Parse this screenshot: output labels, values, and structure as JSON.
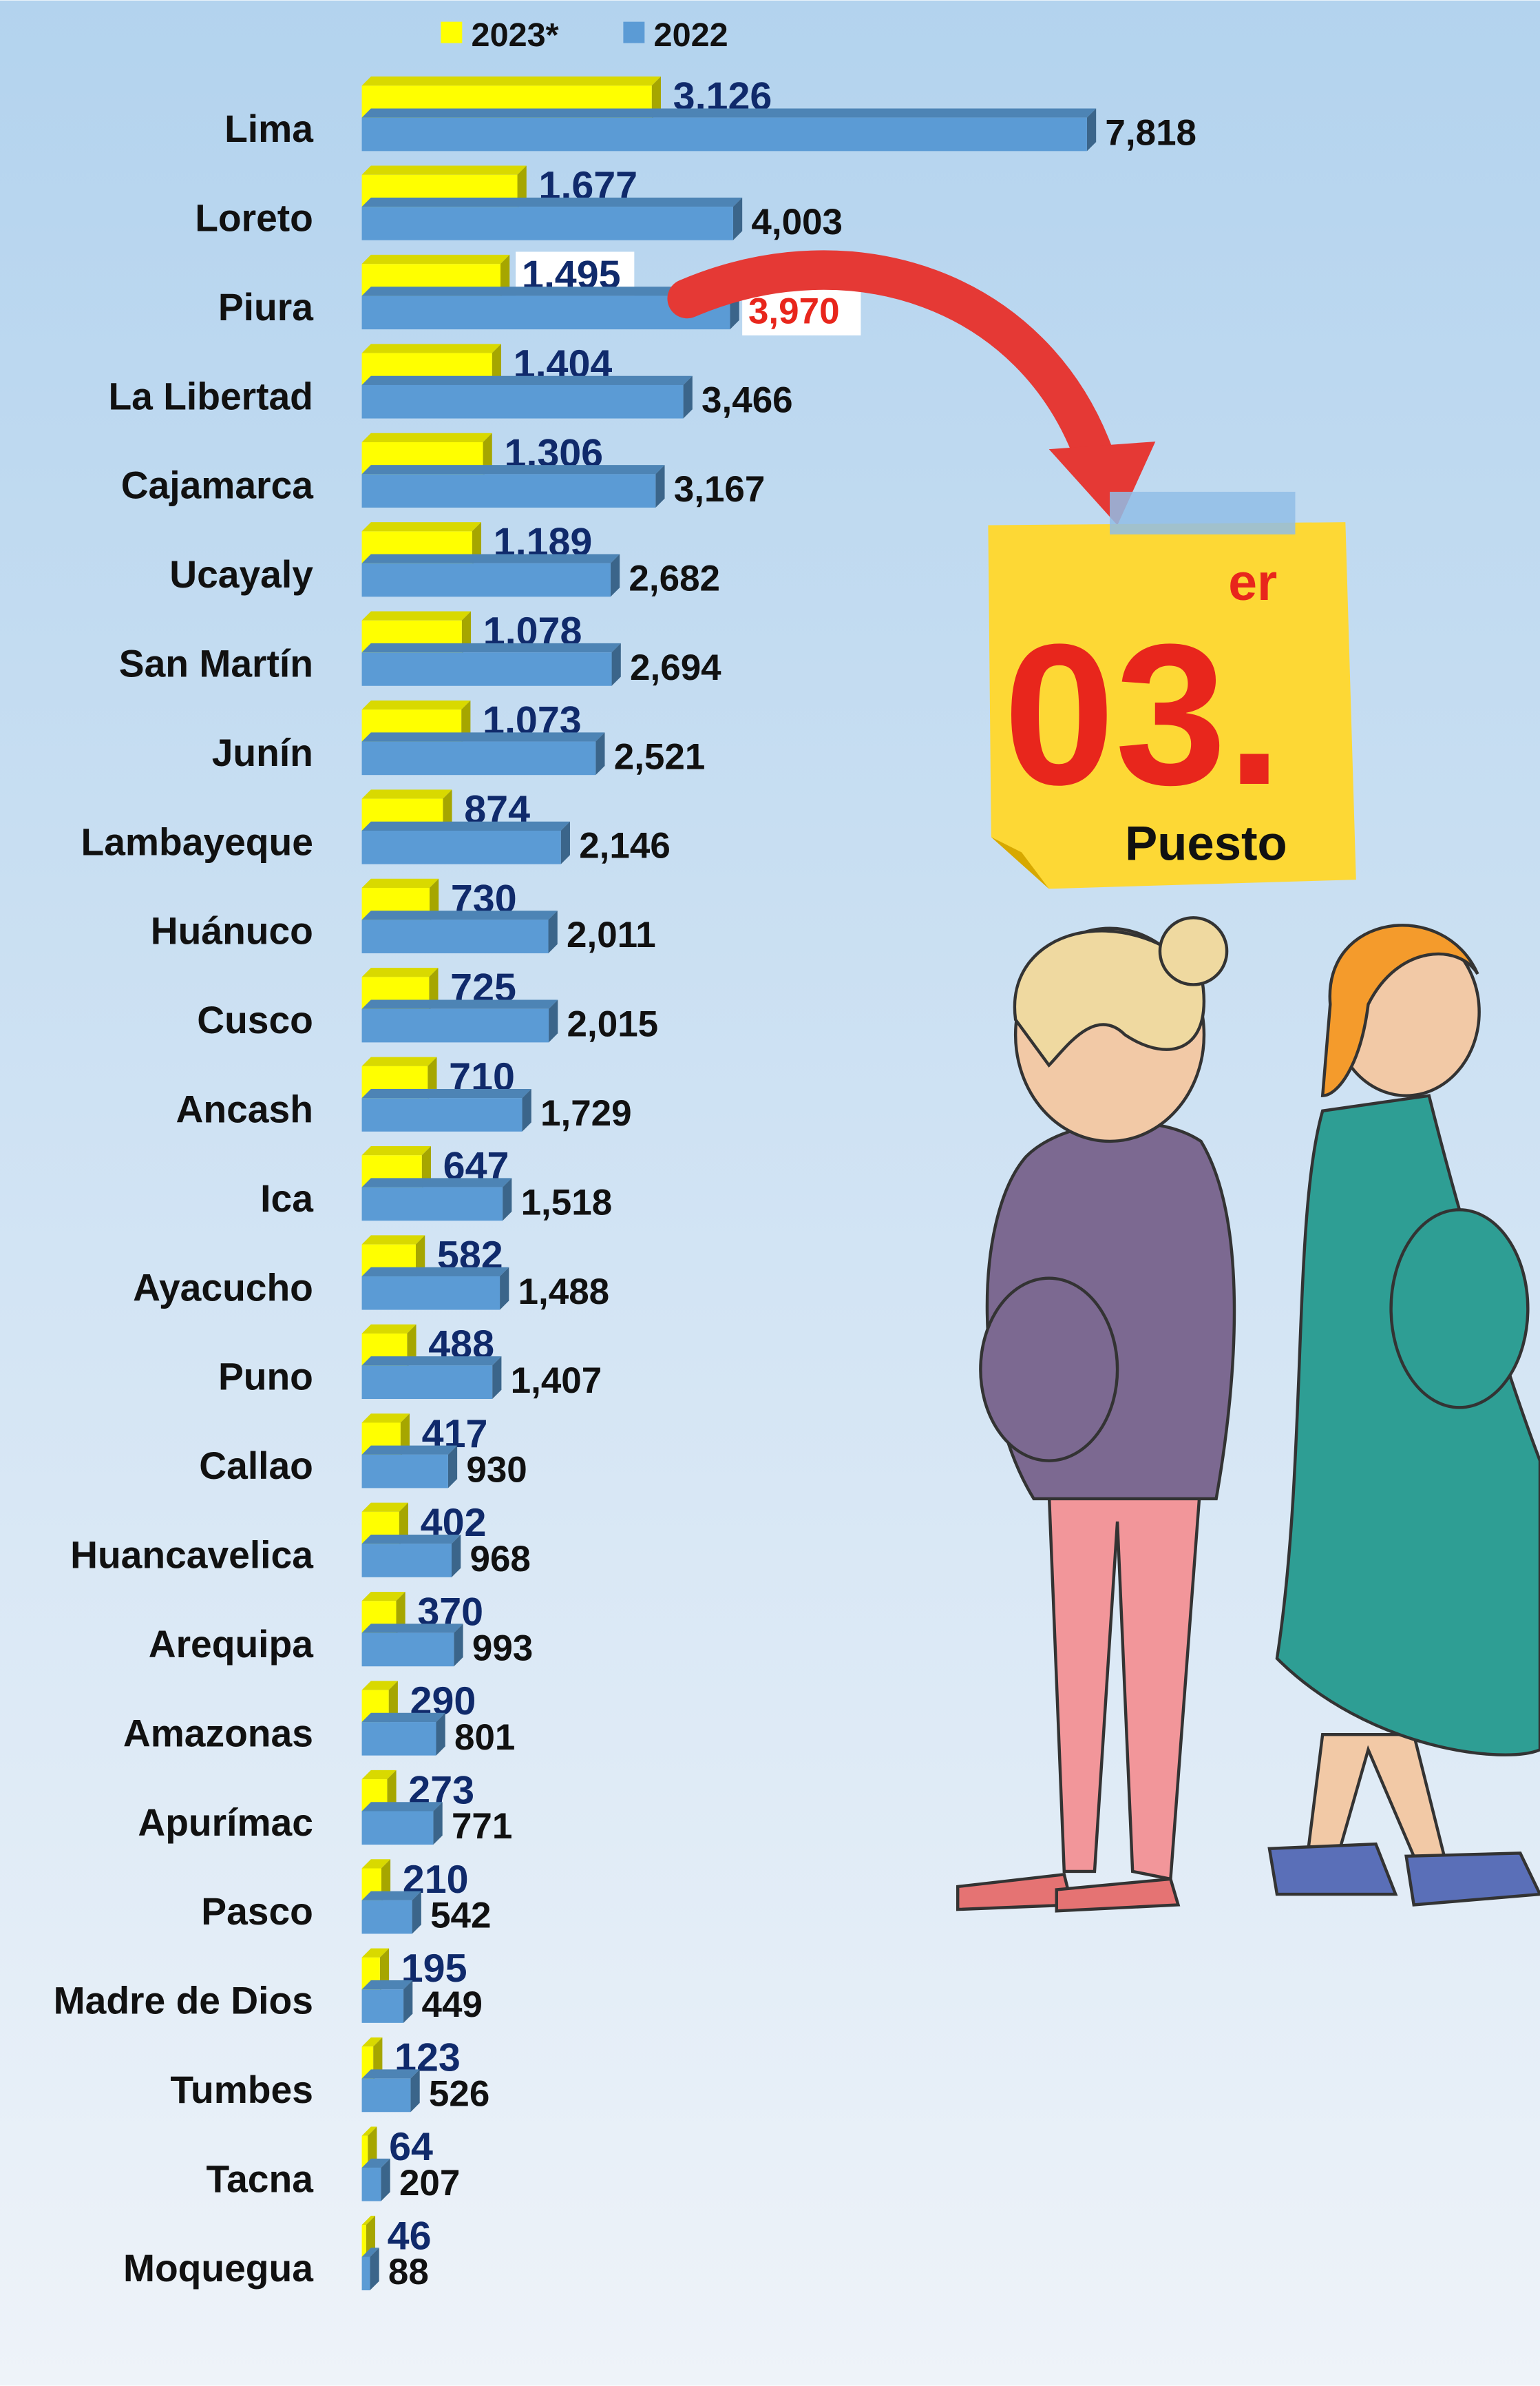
{
  "chart_data": {
    "type": "bar",
    "orientation": "horizontal",
    "categories": [
      "Lima",
      "Loreto",
      "Piura",
      "La Libertad",
      "Cajamarca",
      "Ucayaly",
      "San Martín",
      "Junín",
      "Lambayeque",
      "Huánuco",
      "Cusco",
      "Ancash",
      "Ica",
      "Ayacucho",
      "Puno",
      "Callao",
      "Huancavelica",
      "Arequipa",
      "Amazonas",
      "Apurímac",
      "Pasco",
      "Madre de Dios",
      "Tumbes",
      "Tacna",
      "Moquegua"
    ],
    "series": [
      {
        "name": "2023*",
        "color": "#ffff00",
        "label_color": "#102a6b",
        "values": [
          3126,
          1677,
          1495,
          1404,
          1306,
          1189,
          1078,
          1073,
          874,
          730,
          725,
          710,
          647,
          582,
          488,
          417,
          402,
          370,
          290,
          273,
          210,
          195,
          123,
          64,
          46
        ],
        "value_labels": [
          "3,126",
          "1,677",
          "1,495",
          "1,404",
          "1,306",
          "1,189",
          "1,078",
          "1,073",
          "874",
          "730",
          "725",
          "710",
          "647",
          "582",
          "488",
          "417",
          "402",
          "370",
          "290",
          "273",
          "210",
          "195",
          "123",
          "64",
          "46"
        ]
      },
      {
        "name": "2022",
        "color": "#5b9bd5",
        "label_color": "#111111",
        "values": [
          7818,
          4003,
          3970,
          3466,
          3167,
          2682,
          2694,
          2521,
          2146,
          2011,
          2015,
          1729,
          1518,
          1488,
          1407,
          930,
          968,
          993,
          801,
          771,
          542,
          449,
          526,
          207,
          88
        ],
        "value_labels": [
          "7,818",
          "4,003",
          "3,970",
          "3,466",
          "3,167",
          "2,682",
          "2,694",
          "2,521",
          "2,146",
          "2,011",
          "2,015",
          "1,729",
          "1,518",
          "1,488",
          "1,407",
          "930",
          "968",
          "993",
          "801",
          "771",
          "542",
          "449",
          "526",
          "207",
          "88"
        ]
      }
    ],
    "highlight_index": 2,
    "highlight_color": "#e8261c",
    "legend": "top",
    "annotations": {
      "rank": "03.",
      "suffix": "er",
      "caption": "Puesto"
    }
  }
}
